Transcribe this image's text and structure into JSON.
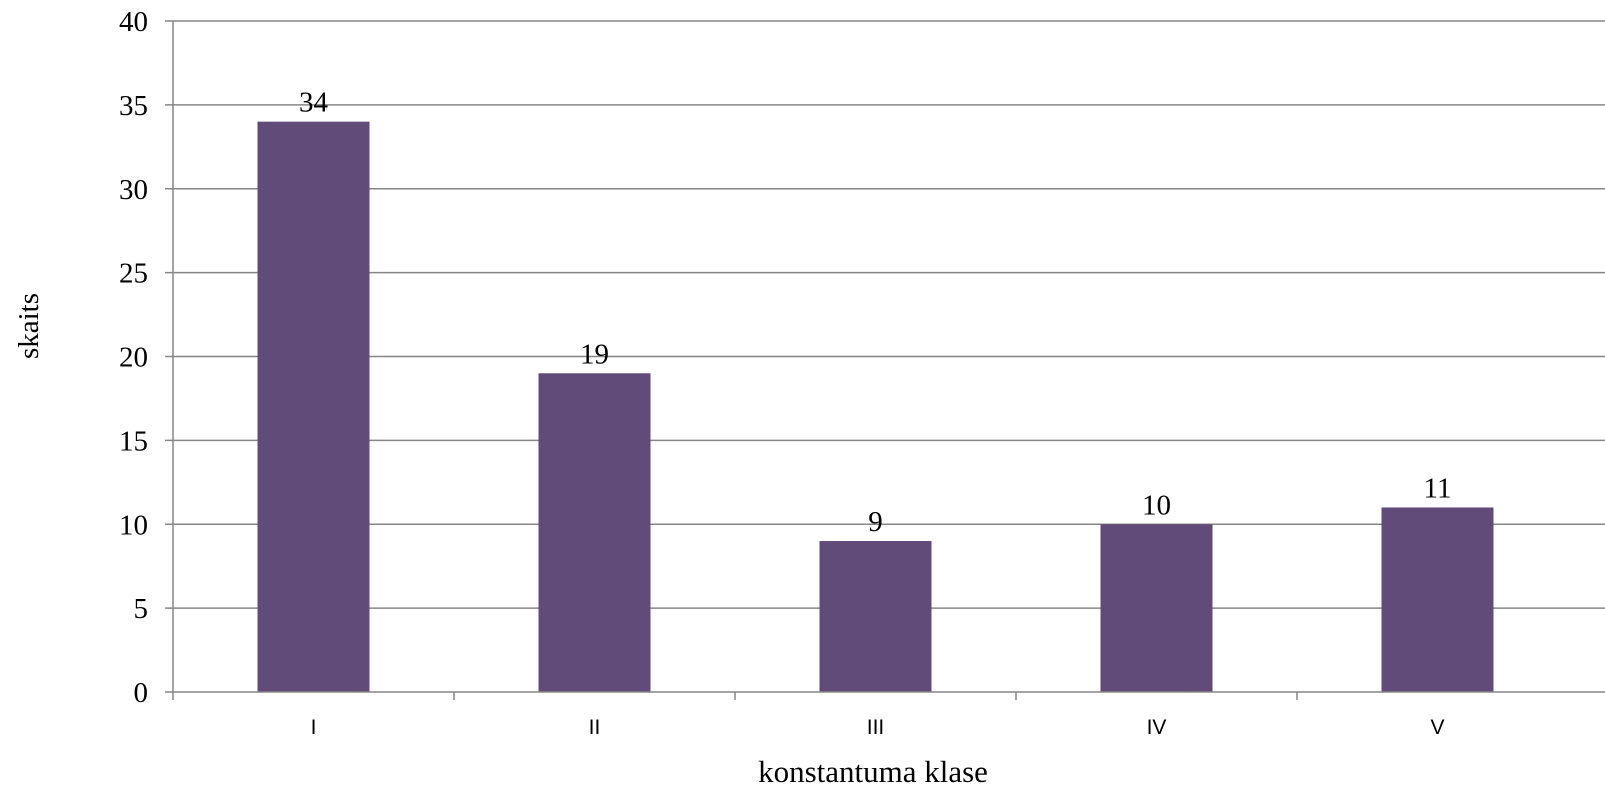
{
  "chart_data": {
    "type": "bar",
    "categories": [
      "I",
      "II",
      "III",
      "IV",
      "V"
    ],
    "values": [
      34,
      19,
      9,
      10,
      11
    ],
    "data_labels": [
      "34",
      "19",
      "9",
      "10",
      "11"
    ],
    "xlabel": "konstantuma klase",
    "ylabel": "skaits",
    "ylim": [
      0,
      40
    ],
    "yticks": [
      0,
      5,
      10,
      15,
      20,
      25,
      30,
      35,
      40
    ],
    "grid": true,
    "legend": "none",
    "bar_color": "#614b79",
    "grid_color": "#868686"
  }
}
